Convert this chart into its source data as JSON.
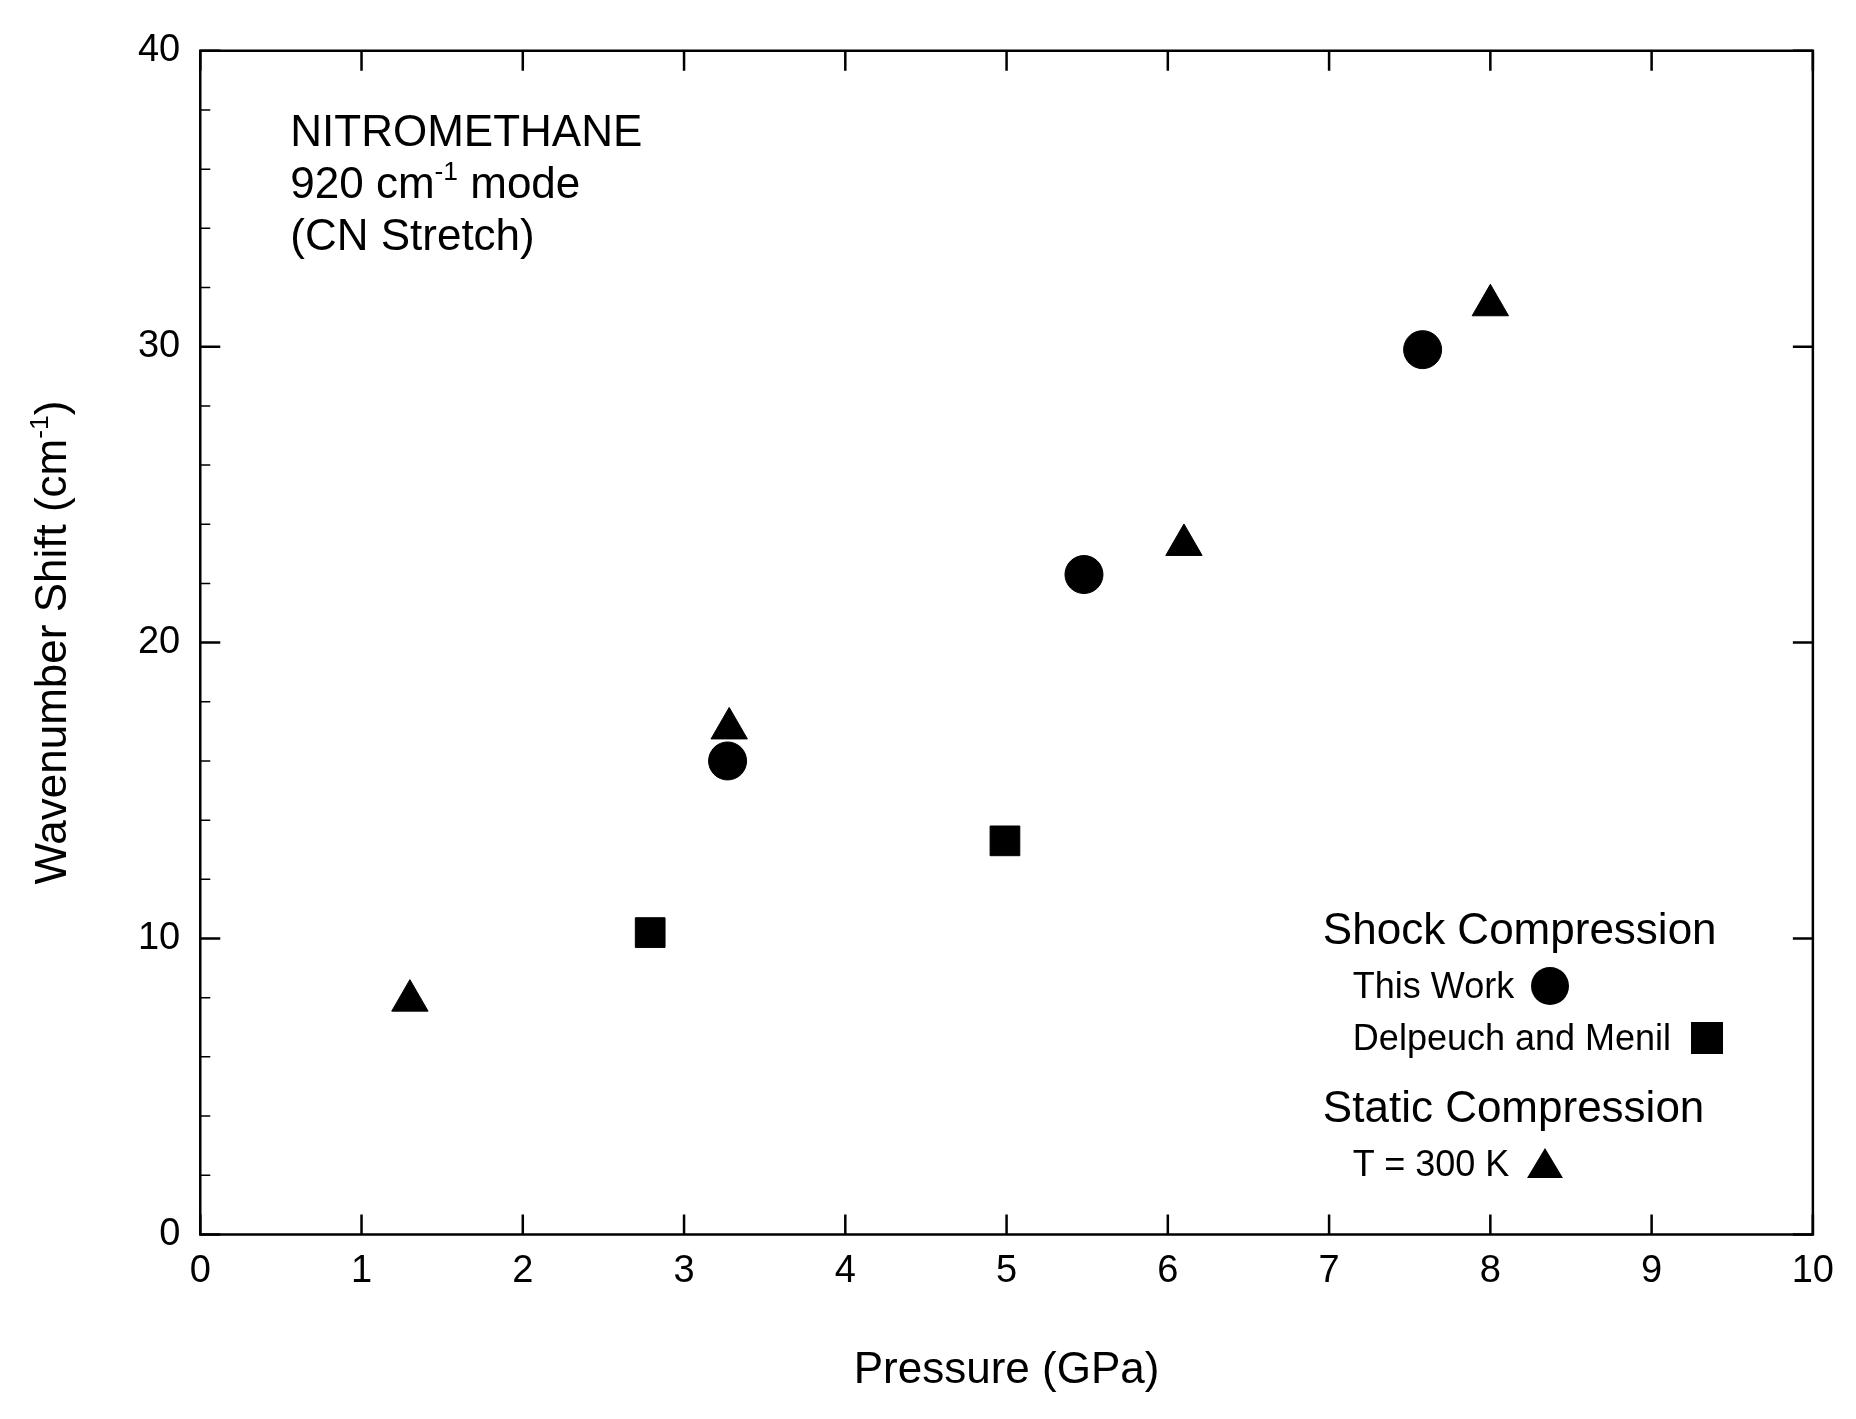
{
  "chart_data": {
    "type": "scatter",
    "xlabel": "Pressure (GPa)",
    "ylabel": "Wavenumber Shift (cm$^{-1}$)",
    "xlim": [
      0,
      10
    ],
    "xticks": [
      0,
      1,
      2,
      3,
      4,
      5,
      6,
      7,
      8,
      9,
      10
    ],
    "ylim": [
      0,
      40
    ],
    "yticks": [
      0,
      10,
      20,
      30,
      40
    ],
    "grid": false,
    "legend": "bottom right",
    "legend_title": "Shock Compression",
    "annotations": [
      "NITROMETHANE",
      "920 cm$^{-1}$ mode",
      "(CN Stretch)",
      "Static Compression"
    ],
    "series": [
      {
        "name": "This Work",
        "color": "#000000",
        "marker": "circle",
        "x": [
          3.27,
          5.48,
          7.58
        ],
        "values": [
          16.0,
          22.3,
          29.9
        ]
      },
      {
        "name": "Delpeuch and Menil",
        "color": "#000000",
        "marker": "square",
        "x": [
          2.79,
          4.99
        ],
        "values": [
          10.2,
          13.3
        ]
      },
      {
        "name": "T = 300 K",
        "color": "#000000",
        "marker": "triangle",
        "x": [
          1.3,
          3.28,
          6.1,
          8.0
        ],
        "values": [
          7.9,
          17.1,
          23.3,
          31.4
        ]
      }
    ]
  }
}
